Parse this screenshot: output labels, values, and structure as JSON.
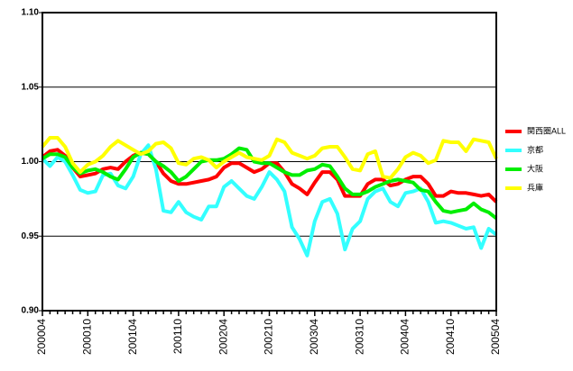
{
  "chart_data": {
    "type": "line",
    "categories": [
      "200004",
      null,
      null,
      null,
      null,
      null,
      "200010",
      null,
      null,
      null,
      null,
      null,
      "200104",
      null,
      null,
      null,
      null,
      null,
      "200110",
      null,
      null,
      null,
      null,
      null,
      "200204",
      null,
      null,
      null,
      null,
      null,
      "200210",
      null,
      null,
      null,
      null,
      null,
      "200304",
      null,
      null,
      null,
      null,
      null,
      "200310",
      null,
      null,
      null,
      null,
      null,
      "200404",
      null,
      null,
      null,
      null,
      null,
      "200410",
      null,
      null,
      null,
      null,
      null,
      "200504"
    ],
    "series": [
      {
        "name": "関西圏ALL",
        "color": "#ff0000",
        "values": [
          1.003,
          1.007,
          1.008,
          1.004,
          0.996,
          0.99,
          0.991,
          0.992,
          0.995,
          0.996,
          0.995,
          1.0,
          1.004,
          1.006,
          1.005,
          1.0,
          0.992,
          0.987,
          0.985,
          0.985,
          0.986,
          0.987,
          0.988,
          0.99,
          0.996,
          0.999,
          0.999,
          0.996,
          0.993,
          0.995,
          0.999,
          0.999,
          0.993,
          0.985,
          0.982,
          0.978,
          0.986,
          0.993,
          0.993,
          0.988,
          0.977,
          0.977,
          0.977,
          0.985,
          0.988,
          0.988,
          0.984,
          0.985,
          0.988,
          0.99,
          0.99,
          0.985,
          0.977,
          0.977,
          0.98,
          0.979,
          0.979,
          0.978,
          0.977,
          0.978,
          0.973
        ]
      },
      {
        "name": "京都",
        "color": "#33ffff",
        "values": [
          1.002,
          0.997,
          1.003,
          1.0,
          0.991,
          0.981,
          0.979,
          0.98,
          0.991,
          0.992,
          0.984,
          0.982,
          0.99,
          1.005,
          1.011,
          0.995,
          0.967,
          0.966,
          0.973,
          0.966,
          0.963,
          0.961,
          0.97,
          0.97,
          0.983,
          0.987,
          0.982,
          0.977,
          0.975,
          0.983,
          0.993,
          0.988,
          0.98,
          0.956,
          0.948,
          0.937,
          0.96,
          0.973,
          0.975,
          0.965,
          0.941,
          0.955,
          0.96,
          0.975,
          0.98,
          0.982,
          0.973,
          0.97,
          0.979,
          0.98,
          0.982,
          0.973,
          0.959,
          0.96,
          0.959,
          0.957,
          0.955,
          0.956,
          0.942,
          0.955,
          0.951
        ]
      },
      {
        "name": "大阪",
        "color": "#00ee00",
        "values": [
          1.002,
          1.005,
          1.005,
          1.003,
          0.996,
          0.992,
          0.994,
          0.995,
          0.993,
          0.99,
          0.988,
          0.995,
          1.003,
          1.006,
          1.005,
          1.0,
          0.997,
          0.993,
          0.987,
          0.99,
          0.995,
          1.0,
          1.001,
          1.001,
          1.002,
          1.005,
          1.009,
          1.008,
          1.0,
          0.999,
          0.999,
          0.996,
          0.993,
          0.991,
          0.991,
          0.994,
          0.995,
          0.998,
          0.997,
          0.99,
          0.982,
          0.978,
          0.978,
          0.98,
          0.983,
          0.985,
          0.987,
          0.988,
          0.987,
          0.986,
          0.981,
          0.98,
          0.973,
          0.967,
          0.966,
          0.967,
          0.968,
          0.972,
          0.968,
          0.966,
          0.962
        ]
      },
      {
        "name": "兵庫",
        "color": "#ffff00",
        "values": [
          1.01,
          1.016,
          1.016,
          1.01,
          0.999,
          0.993,
          0.998,
          1.0,
          1.004,
          1.01,
          1.014,
          1.011,
          1.008,
          1.005,
          1.007,
          1.012,
          1.013,
          1.009,
          0.999,
          0.998,
          1.002,
          1.003,
          1.001,
          0.996,
          1.0,
          1.003,
          1.006,
          1.003,
          1.002,
          1.001,
          1.004,
          1.015,
          1.013,
          1.006,
          1.004,
          1.002,
          1.004,
          1.009,
          1.01,
          1.01,
          1.003,
          0.995,
          0.994,
          1.005,
          1.007,
          0.99,
          0.989,
          0.995,
          1.003,
          1.006,
          1.004,
          0.999,
          1.001,
          1.014,
          1.013,
          1.013,
          1.007,
          1.015,
          1.014,
          1.013,
          1.002
        ]
      }
    ],
    "ylim": [
      0.9,
      1.1
    ],
    "yticks": [
      {
        "value": 0.9,
        "label": "0.90"
      },
      {
        "value": 0.95,
        "label": "0.95"
      },
      {
        "value": 1.0,
        "label": "1.00"
      },
      {
        "value": 1.05,
        "label": "1.05"
      },
      {
        "value": 1.1,
        "label": "1.10"
      }
    ],
    "grid": true,
    "legend": "right"
  }
}
